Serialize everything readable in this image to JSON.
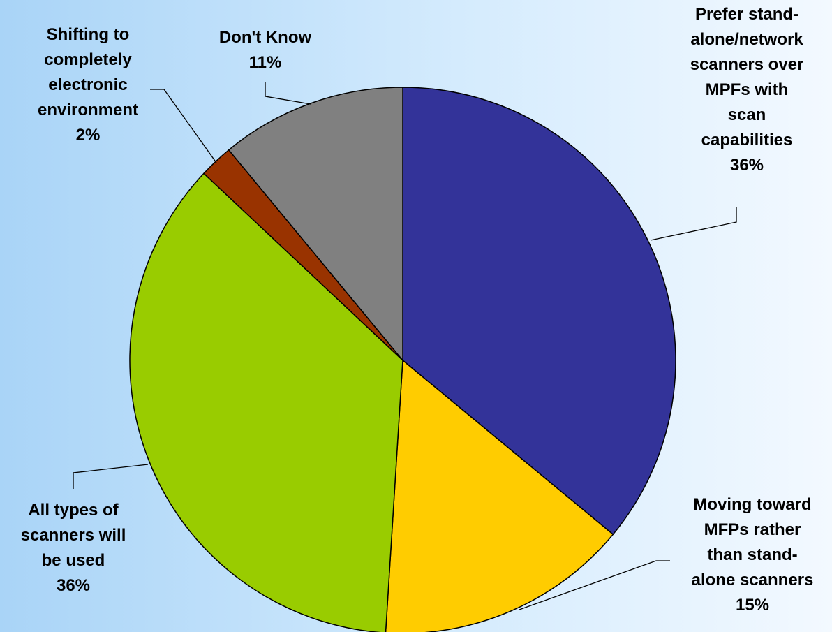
{
  "chart_data": {
    "type": "pie",
    "title": "",
    "slices": [
      {
        "label_lines": [
          "Prefer stand-",
          "alone/network",
          "scanners over",
          "MPFs with",
          "scan",
          "capabilities"
        ],
        "value": 36,
        "value_label": "36%",
        "color": "#333399"
      },
      {
        "label_lines": [
          "Moving toward",
          "MFPs rather",
          "than stand-",
          "alone scanners"
        ],
        "value": 15,
        "value_label": "15%",
        "color": "#ffcc00"
      },
      {
        "label_lines": [
          "All types of",
          "scanners will",
          "be used"
        ],
        "value": 36,
        "value_label": "36%",
        "color": "#99cc00"
      },
      {
        "label_lines": [
          "Shifting to",
          "completely",
          "electronic",
          "environment"
        ],
        "value": 2,
        "value_label": "2%",
        "color": "#993300"
      },
      {
        "label_lines": [
          "Don't Know"
        ],
        "value": 11,
        "value_label": "11%",
        "color": "#808080"
      }
    ]
  }
}
